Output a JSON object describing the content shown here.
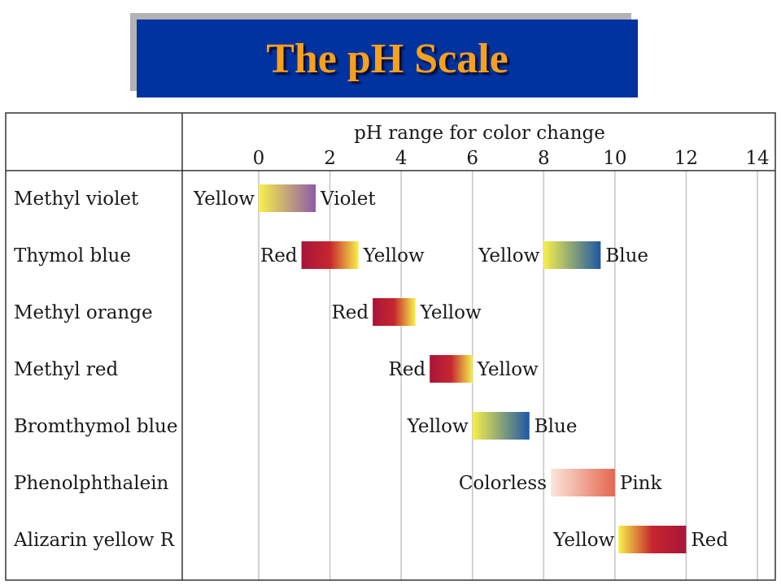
{
  "title": "The pH Scale",
  "chart_data": {
    "type": "range",
    "title": "The pH Scale",
    "xlabel": "pH range for color change",
    "xlim": [
      0,
      14
    ],
    "x_ticks": [
      "0",
      "2",
      "4",
      "6",
      "8",
      "10",
      "12",
      "14"
    ],
    "grid": true,
    "indicators": [
      {
        "name": "Methyl violet",
        "ranges": [
          {
            "from": 0,
            "to": 1.6,
            "low_label": "Yellow",
            "high_label": "Violet",
            "colors": [
              "#f7f04a",
              "#8e5aa9"
            ]
          }
        ]
      },
      {
        "name": "Thymol blue",
        "ranges": [
          {
            "from": 1.2,
            "to": 2.8,
            "low_label": "Red",
            "high_label": "Yellow",
            "colors": [
              "#a8153a",
              "#c6262e",
              "#f7f04a"
            ]
          },
          {
            "from": 8.0,
            "to": 9.6,
            "low_label": "Yellow",
            "high_label": "Blue",
            "colors": [
              "#f7f04a",
              "#1d58a5"
            ]
          }
        ]
      },
      {
        "name": "Methyl orange",
        "ranges": [
          {
            "from": 3.2,
            "to": 4.4,
            "low_label": "Red",
            "high_label": "Yellow",
            "colors": [
              "#a8153a",
              "#c6262e",
              "#f7f04a"
            ]
          }
        ]
      },
      {
        "name": "Methyl red",
        "ranges": [
          {
            "from": 4.8,
            "to": 6.0,
            "low_label": "Red",
            "high_label": "Yellow",
            "colors": [
              "#a8153a",
              "#c6262e",
              "#f7f04a"
            ]
          }
        ]
      },
      {
        "name": "Bromthymol blue",
        "ranges": [
          {
            "from": 6.0,
            "to": 7.6,
            "low_label": "Yellow",
            "high_label": "Blue",
            "colors": [
              "#f7f04a",
              "#1d58a5"
            ]
          }
        ]
      },
      {
        "name": "Phenolphthalein",
        "ranges": [
          {
            "from": 8.2,
            "to": 10.0,
            "low_label": "Colorless",
            "high_label": "Pink",
            "colors": [
              "#fbe7dc",
              "#e4664f"
            ]
          }
        ]
      },
      {
        "name": "Alizarin yellow R",
        "ranges": [
          {
            "from": 10.1,
            "to": 12.0,
            "low_label": "Yellow",
            "high_label": "Red",
            "colors": [
              "#f7f04a",
              "#c6262e",
              "#a8153a"
            ]
          }
        ]
      }
    ]
  }
}
